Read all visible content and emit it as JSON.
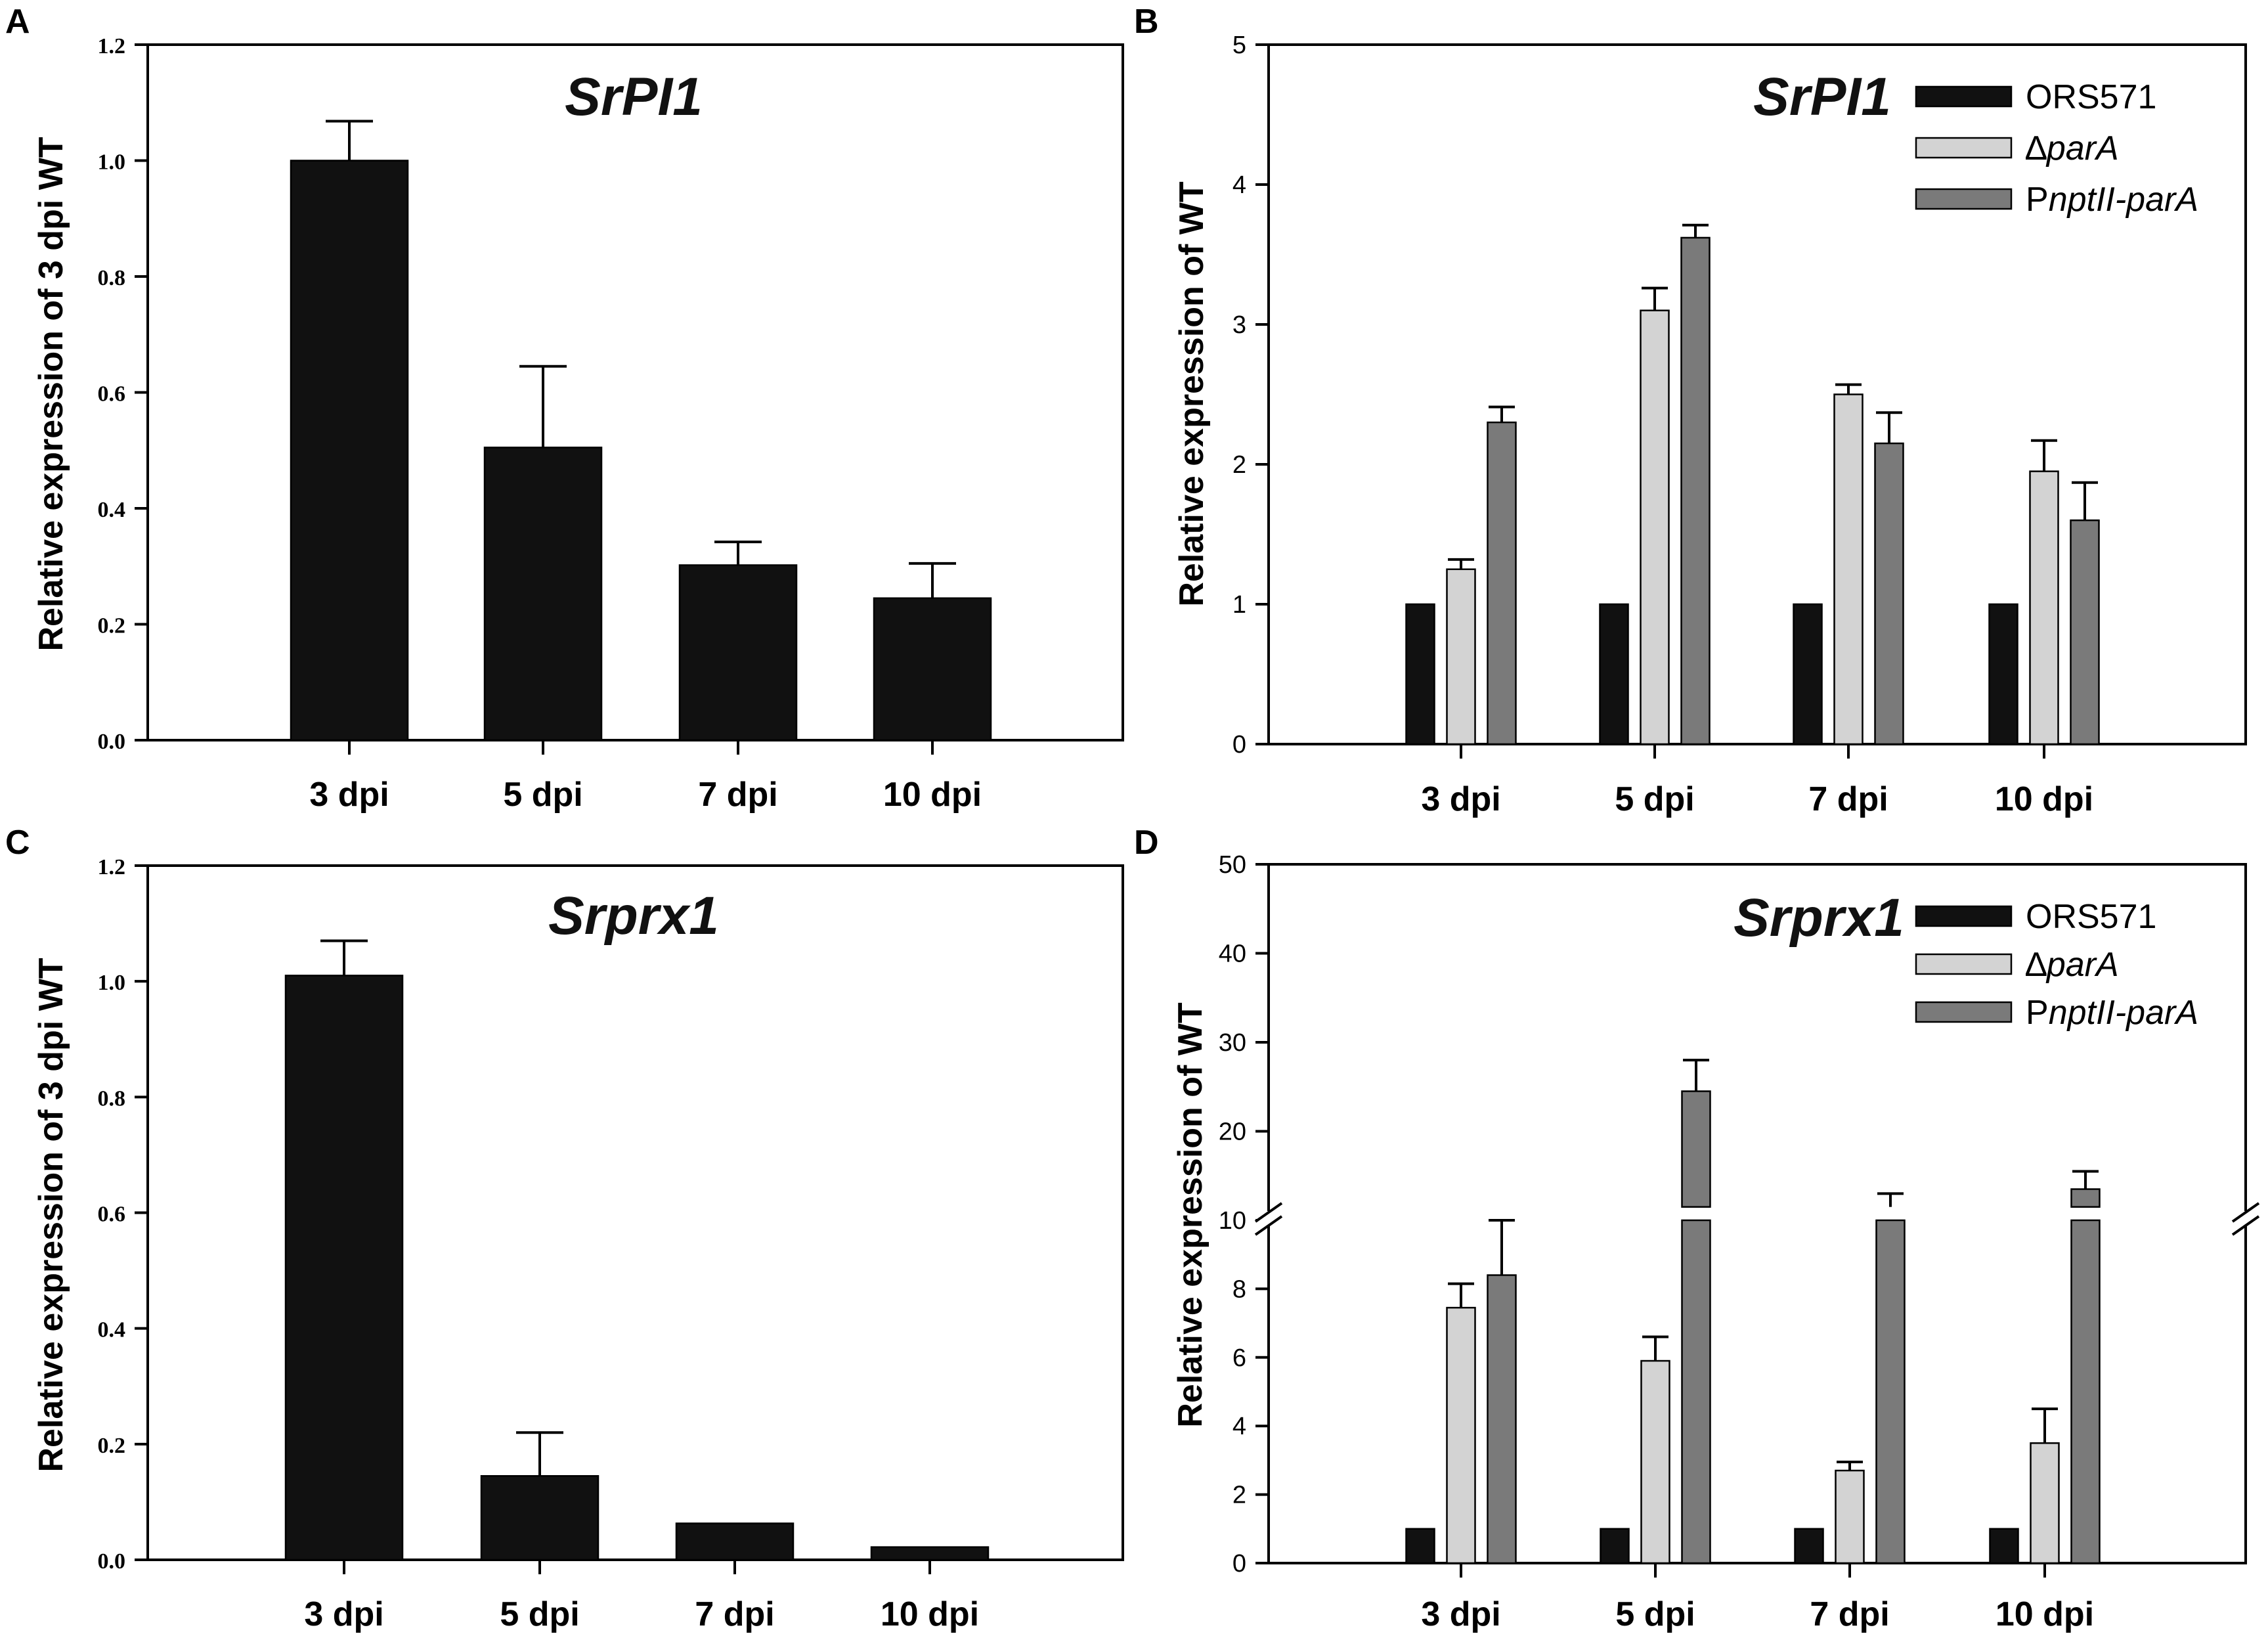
{
  "colors": {
    "ORS571": "#111111",
    "parA": "#d3d3d3",
    "PnptII": "#7a7a7a",
    "single": "#111111"
  },
  "chart_data": [
    {
      "panel": "A",
      "type": "bar",
      "title": "SrPI1",
      "ylabel": "Relative expression of 3 dpi WT",
      "xlabel": "",
      "categories": [
        "3 dpi",
        "5 dpi",
        "7 dpi",
        "10 dpi"
      ],
      "yticks": [
        "0.0",
        "0.2",
        "0.4",
        "0.6",
        "0.8",
        "1.0",
        "1.2"
      ],
      "ylim": [
        0,
        1.2
      ],
      "series": [
        {
          "name": "WT",
          "values": [
            1.0,
            0.505,
            0.302,
            0.245
          ],
          "errors": [
            0.068,
            0.14,
            0.04,
            0.06
          ]
        }
      ]
    },
    {
      "panel": "B",
      "type": "bar",
      "title": "SrPI1",
      "ylabel": "Relative expression of WT",
      "xlabel": "",
      "categories": [
        "3 dpi",
        "5 dpi",
        "7 dpi",
        "10 dpi"
      ],
      "yticks": [
        "0",
        "1",
        "2",
        "3",
        "4",
        "5"
      ],
      "ylim": [
        0,
        5
      ],
      "legend": [
        {
          "pre": "ORS571",
          "ital": "",
          "post": ""
        },
        {
          "pre": "∆",
          "ital": "parA",
          "post": ""
        },
        {
          "pre": "P",
          "ital": "nptII-parA",
          "post": ""
        }
      ],
      "series": [
        {
          "name": "ORS571",
          "values": [
            1.0,
            1.0,
            1.0,
            1.0
          ],
          "errors": [
            0.01,
            0.01,
            0.01,
            0.01
          ]
        },
        {
          "name": "∆parA",
          "values": [
            1.25,
            3.1,
            2.5,
            1.95
          ],
          "errors": [
            0.07,
            0.16,
            0.07,
            0.22
          ]
        },
        {
          "name": "PnptII-parA",
          "values": [
            2.3,
            3.62,
            2.15,
            1.6
          ],
          "errors": [
            0.11,
            0.09,
            0.22,
            0.27
          ]
        }
      ]
    },
    {
      "panel": "C",
      "type": "bar",
      "title": "Srprx1",
      "ylabel": "Relative expression of 3 dpi WT",
      "xlabel": "",
      "categories": [
        "3 dpi",
        "5 dpi",
        "7 dpi",
        "10 dpi"
      ],
      "yticks": [
        "0.0",
        "0.2",
        "0.4",
        "0.6",
        "0.8",
        "1.0",
        "1.2"
      ],
      "ylim": [
        0,
        1.2
      ],
      "series": [
        {
          "name": "WT",
          "values": [
            1.01,
            0.145,
            0.063,
            0.022
          ],
          "errors": [
            0.06,
            0.075,
            0.015,
            0.015
          ]
        }
      ]
    },
    {
      "panel": "D",
      "type": "bar",
      "title": "Srprx1",
      "ylabel": "Relative expression of WT",
      "xlabel": "",
      "categories": [
        "3 dpi",
        "5 dpi",
        "7 dpi",
        "10 dpi"
      ],
      "yticks_lower": [
        "0",
        "2",
        "4",
        "6",
        "8",
        "10"
      ],
      "yticks_upper": [
        "20",
        "30",
        "40",
        "50"
      ],
      "ylim": [
        0,
        50
      ],
      "axis_break": [
        10,
        10
      ],
      "legend": [
        {
          "pre": "ORS571",
          "ital": "",
          "post": ""
        },
        {
          "pre": "∆",
          "ital": "parA",
          "post": ""
        },
        {
          "pre": "P",
          "ital": "nptII-parA",
          "post": ""
        }
      ],
      "series": [
        {
          "name": "ORS571",
          "values": [
            1.0,
            1.0,
            1.0,
            1.0
          ],
          "errors": [
            0.02,
            0.02,
            0.02,
            0.02
          ]
        },
        {
          "name": "∆parA",
          "values": [
            7.45,
            5.9,
            2.7,
            3.5
          ],
          "errors": [
            0.7,
            0.7,
            0.25,
            1.0
          ]
        },
        {
          "name": "PnptII-parA",
          "values": [
            8.4,
            24.5,
            10.0,
            13.5
          ],
          "errors": [
            1.6,
            3.5,
            3.0,
            2.0
          ]
        }
      ]
    }
  ]
}
